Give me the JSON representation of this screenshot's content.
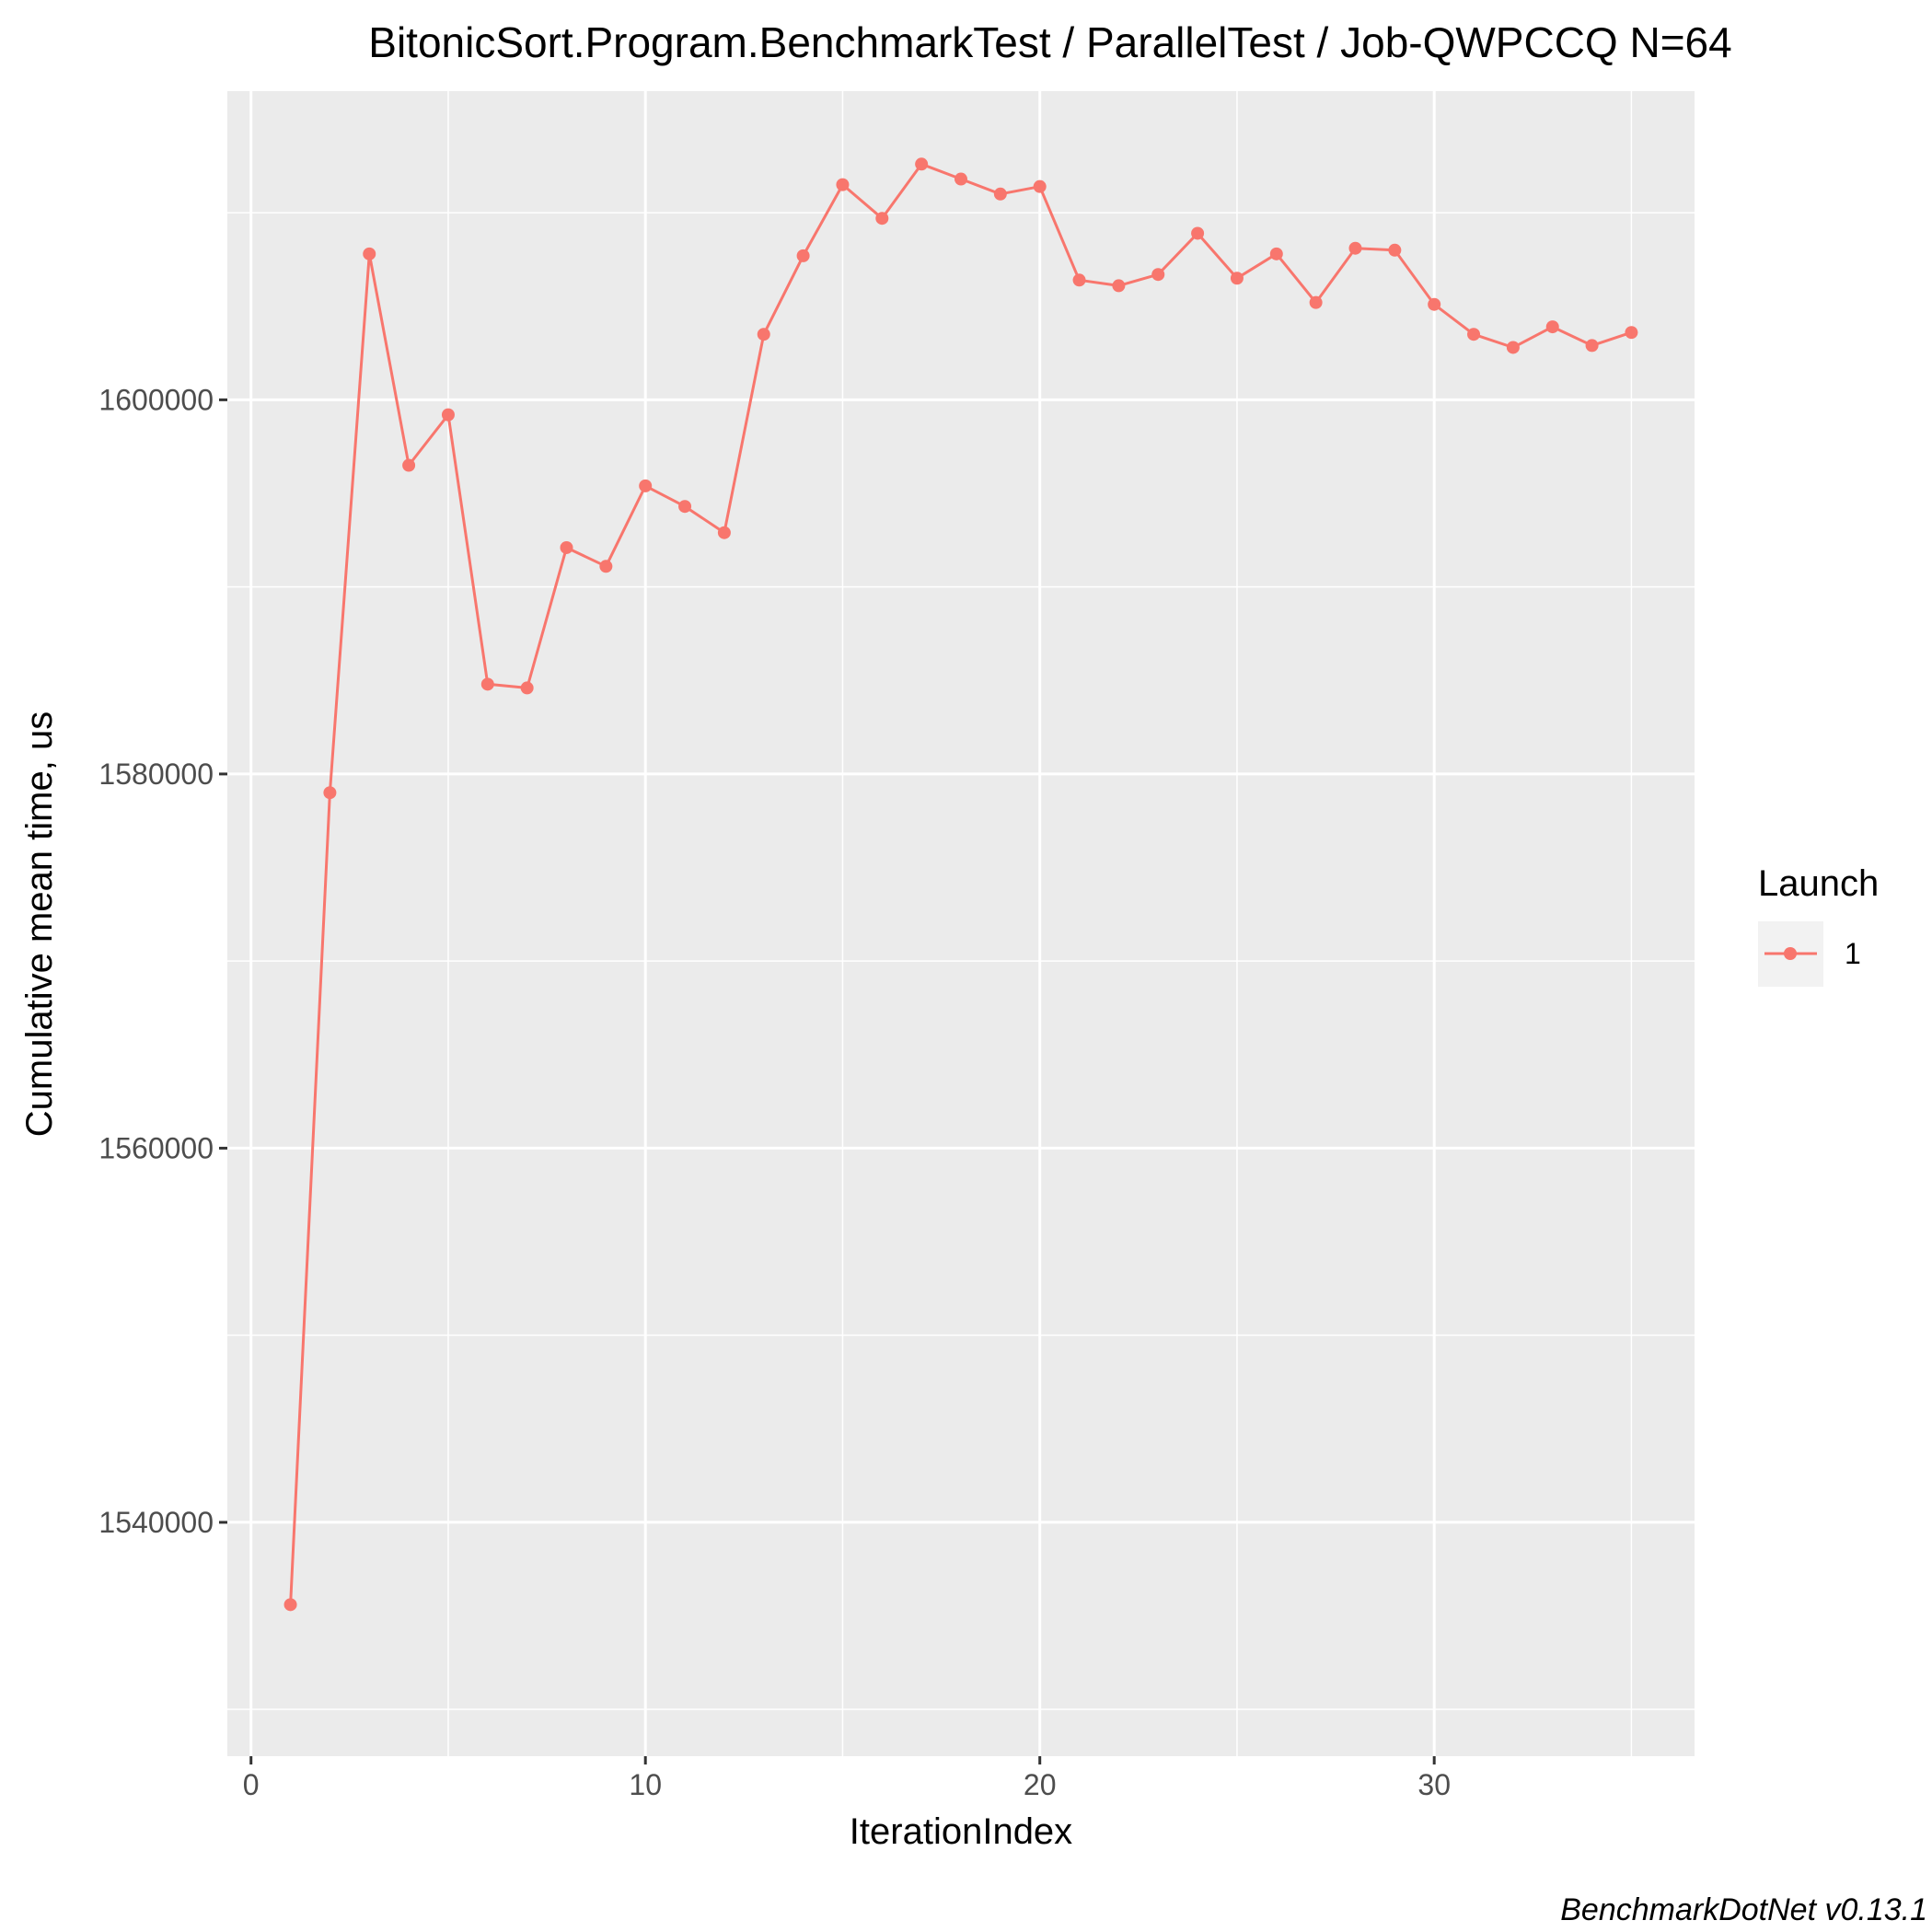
{
  "chart_data": {
    "type": "line",
    "title": "BitonicSort.Program.BenchmarkTest / ParallelTest / Job-QWPCCQ N=64",
    "xlabel": "IterationIndex",
    "ylabel": "Cumulative mean time, us",
    "xlim": [
      -0.6,
      36.6
    ],
    "ylim": [
      1527500,
      1616500
    ],
    "x_ticks": [
      0,
      10,
      20,
      30
    ],
    "x_tick_labels": [
      "0",
      "10",
      "20",
      "30"
    ],
    "y_ticks": [
      1540000,
      1560000,
      1580000,
      1600000
    ],
    "y_tick_labels": [
      "1540000",
      "1560000",
      "1580000",
      "1600000"
    ],
    "grid": true,
    "legend": {
      "title": "Launch",
      "placement": "right"
    },
    "series": [
      {
        "name": "1",
        "color": "#F8766D",
        "x": [
          1,
          2,
          3,
          4,
          5,
          6,
          7,
          8,
          9,
          10,
          11,
          12,
          13,
          14,
          15,
          16,
          17,
          18,
          19,
          20,
          21,
          22,
          23,
          24,
          25,
          26,
          27,
          28,
          29,
          30,
          31,
          32,
          33,
          34,
          35
        ],
        "y": [
          1535600,
          1579000,
          1607800,
          1596500,
          1599200,
          1584800,
          1584600,
          1592100,
          1591100,
          1595400,
          1594300,
          1592900,
          1603500,
          1607700,
          1611500,
          1609700,
          1612600,
          1611800,
          1611000,
          1611400,
          1606400,
          1606100,
          1606700,
          1608900,
          1606500,
          1607800,
          1605200,
          1608100,
          1608000,
          1605100,
          1603500,
          1602800,
          1603900,
          1602900,
          1603600
        ]
      }
    ],
    "caption": "BenchmarkDotNet v0.13.1",
    "colors": {
      "panel_bg": "#EBEBEB",
      "grid": "#FFFFFF",
      "series": "#F8766D"
    }
  }
}
